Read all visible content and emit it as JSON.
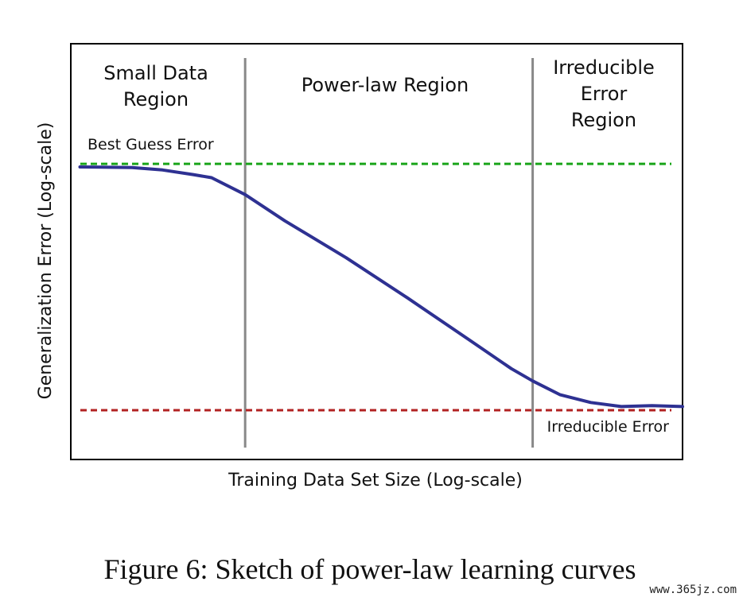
{
  "chart_data": {
    "type": "line",
    "xlabel": "Training Data Set Size (Log-scale)",
    "ylabel": "Generalization Error (Log-scale)",
    "grid": false,
    "legend": "none",
    "regions": [
      {
        "lines": [
          "Small Data",
          "Region"
        ]
      },
      {
        "lines": [
          "Power-law Region"
        ]
      },
      {
        "lines": [
          "Irreducible",
          "Error",
          "Region"
        ]
      }
    ],
    "region_boundaries": [
      2.85,
      7.55
    ],
    "reference_lines": [
      {
        "label": "Best Guess Error",
        "y": 9.0,
        "color": "#1aa51a"
      },
      {
        "label": "Irreducible Error",
        "y": 1.0,
        "color": "#b22222"
      }
    ],
    "series": [
      {
        "color": "#2e3192",
        "x": [
          0.15,
          1.0,
          1.5,
          2.0,
          2.3,
          2.85,
          3.5,
          4.5,
          5.5,
          6.5,
          7.2,
          7.55,
          8.0,
          8.5,
          9.0,
          9.5,
          10.0
        ],
        "y": [
          8.9,
          8.88,
          8.8,
          8.65,
          8.55,
          8.0,
          7.15,
          5.95,
          4.65,
          3.3,
          2.35,
          1.95,
          1.5,
          1.25,
          1.12,
          1.15,
          1.12
        ]
      }
    ],
    "xlim": [
      0,
      10
    ],
    "ylim": [
      -0.6,
      12.9
    ]
  },
  "caption": "Figure 6: Sketch of power-law learning curves",
  "watermark": "www.365jz.com"
}
